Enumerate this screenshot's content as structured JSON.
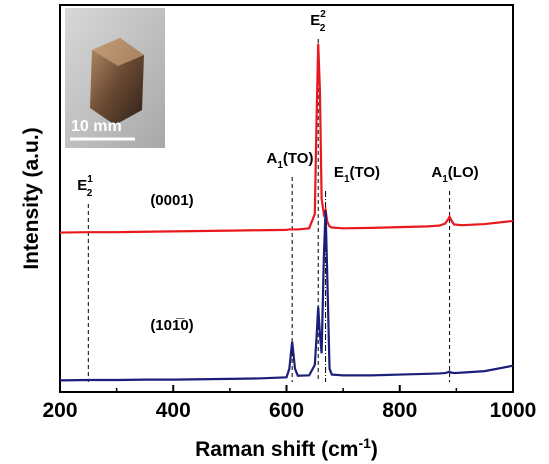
{
  "chart_data": {
    "type": "line",
    "x_label": {
      "text": "Raman shift (cm",
      "sup": "-1",
      "suffix": ")"
    },
    "y_label": "Intensity (a.u.)",
    "xlim": [
      200,
      1000
    ],
    "xticks": [
      200,
      400,
      600,
      800,
      1000
    ],
    "ylim": [
      0,
      100
    ],
    "x": [
      200,
      250,
      300,
      350,
      400,
      450,
      500,
      550,
      600,
      605,
      610,
      615,
      620,
      640,
      650,
      653,
      656,
      659,
      662,
      666,
      669,
      672,
      676,
      680,
      700,
      750,
      800,
      850,
      870,
      880,
      885,
      888,
      891,
      896,
      910,
      950,
      1000
    ],
    "series": [
      {
        "name": "(0001)",
        "color": "#e8191e",
        "values": [
          41.2,
          41.3,
          41.3,
          41.4,
          41.5,
          41.6,
          41.7,
          41.8,
          41.9,
          42,
          42,
          42,
          42,
          42.3,
          46,
          70,
          90,
          78,
          50,
          46,
          47,
          44,
          42.8,
          42.5,
          42.3,
          42.4,
          42.6,
          42.8,
          43,
          43.5,
          44.5,
          45.3,
          44.4,
          43.3,
          43.1,
          43.4,
          44.2
        ]
      },
      {
        "name": "(101̅0)",
        "color": "#1a1f7a",
        "values": [
          3.0,
          3.1,
          3.1,
          3.2,
          3.2,
          3.3,
          3.4,
          3.5,
          3.8,
          6,
          13,
          6,
          4.2,
          4.3,
          7,
          14,
          22,
          15,
          10,
          35,
          47,
          30,
          6,
          4.5,
          4.3,
          4.3,
          4.5,
          4.7,
          4.8,
          4.9,
          5.1,
          5.3,
          5.0,
          4.9,
          5,
          5.4,
          6.8
        ]
      }
    ],
    "annotations": [
      {
        "text": "E",
        "sub": "2",
        "sup": "1",
        "suffix": "",
        "x": 250
      },
      {
        "text": "A",
        "sub": "1",
        "sup": "",
        "suffix": "(TO)",
        "x": 610
      },
      {
        "text": "E",
        "sub": "2",
        "sup": "2",
        "suffix": "",
        "x": 656
      },
      {
        "text": "E",
        "sub": "1",
        "sup": "",
        "suffix": "(TO)",
        "x": 669
      },
      {
        "text": "A",
        "sub": "1",
        "sup": "",
        "suffix": "(LO)",
        "x": 888
      }
    ],
    "inset_label": "10 mm"
  }
}
